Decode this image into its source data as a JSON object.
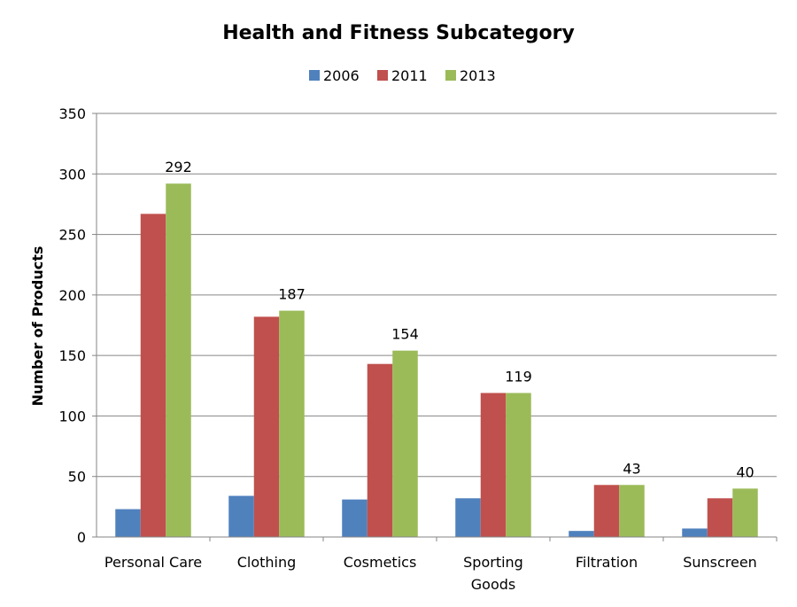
{
  "chart_data": {
    "type": "bar",
    "title": "Health and Fitness Subcategory",
    "xlabel": "",
    "ylabel": "Number of Products",
    "ylim": [
      0,
      350
    ],
    "yticks": [
      0,
      50,
      100,
      150,
      200,
      250,
      300,
      350
    ],
    "grid": true,
    "legend_position": "top",
    "categories": [
      "Personal Care",
      "Clothing",
      "Cosmetics",
      "Sporting Goods",
      "Filtration",
      "Sunscreen"
    ],
    "category_lines": [
      [
        "Personal Care"
      ],
      [
        "Clothing"
      ],
      [
        "Cosmetics"
      ],
      [
        "Sporting",
        "Goods"
      ],
      [
        "Filtration"
      ],
      [
        "Sunscreen"
      ]
    ],
    "series": [
      {
        "name": "2006",
        "color": "#4F81BD",
        "values": [
          23,
          34,
          31,
          32,
          5,
          7
        ]
      },
      {
        "name": "2011",
        "color": "#C0504D",
        "values": [
          267,
          182,
          143,
          119,
          43,
          32
        ]
      },
      {
        "name": "2013",
        "color": "#9BBB59",
        "values": [
          292,
          187,
          154,
          119,
          43,
          40
        ]
      }
    ],
    "data_labels": {
      "series": "2013",
      "values": [
        292,
        187,
        154,
        119,
        43,
        40
      ]
    }
  }
}
